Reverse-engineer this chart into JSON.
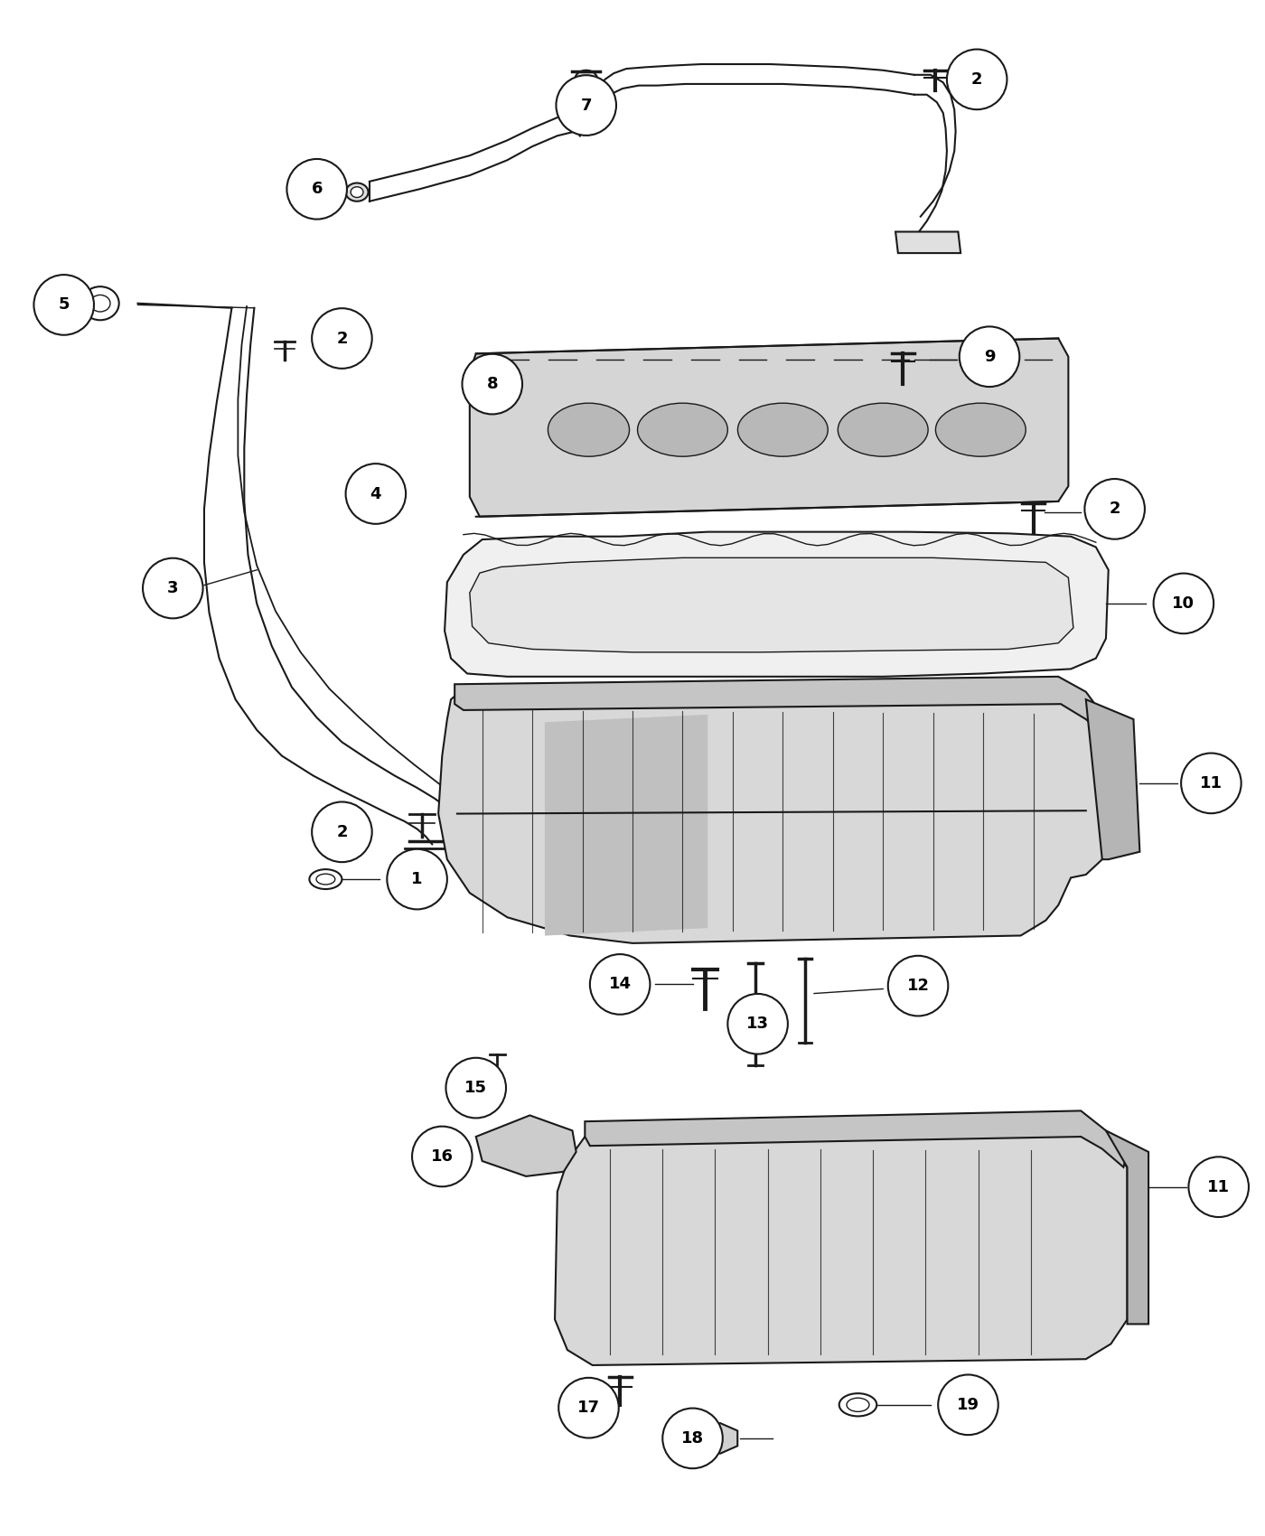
{
  "background_color": "#ffffff",
  "line_color": "#1a1a1a",
  "label_circle_edge": "#1a1a1a",
  "label_font_size": 13,
  "title": ""
}
